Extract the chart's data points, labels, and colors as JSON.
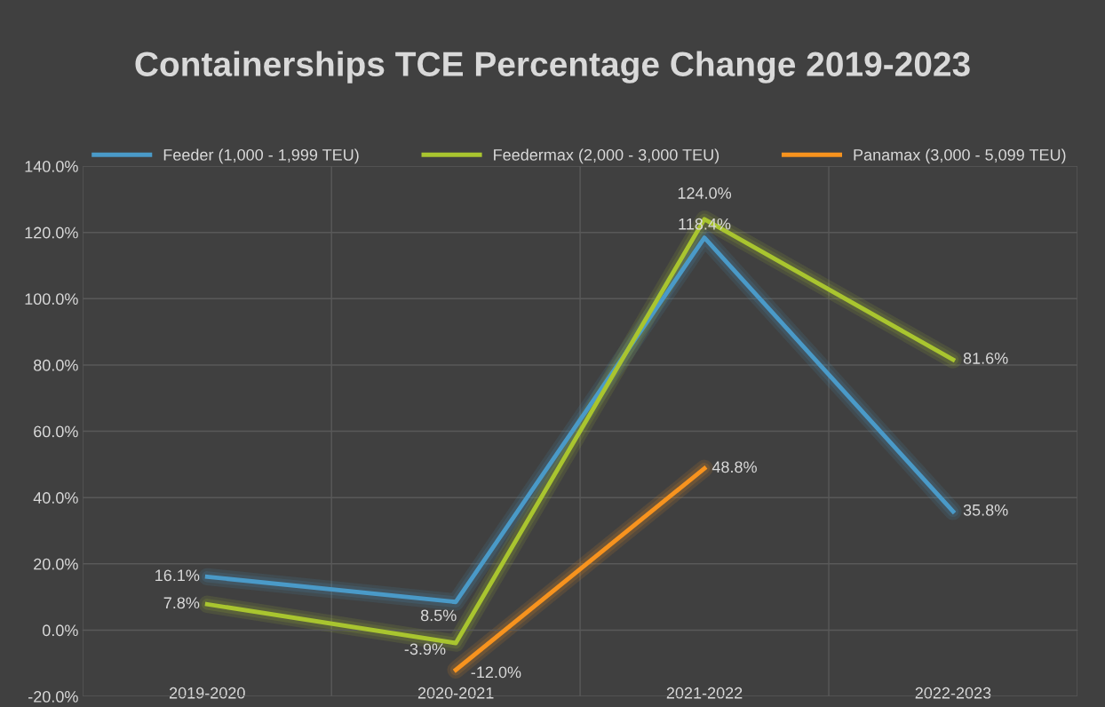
{
  "chart_data": {
    "type": "line",
    "title": "Containerships TCE Percentage Change 2019-2023",
    "categories": [
      "2019-2020",
      "2020-2021",
      "2021-2022",
      "2022-2023"
    ],
    "series": [
      {
        "name": "Feeder (1,000 - 1,999 TEU)",
        "color": "#4a9ac8",
        "values": [
          16.1,
          8.5,
          118.4,
          35.8
        ],
        "value_labels": [
          "16.1%",
          "8.5%",
          "118.4%",
          "35.8%"
        ]
      },
      {
        "name": "Feedermax (2,000 - 3,000 TEU)",
        "color": "#a9c52f",
        "values": [
          7.8,
          -3.9,
          124.0,
          81.6
        ],
        "value_labels": [
          "7.8%",
          "-3.9%",
          "124.0%",
          "81.6%"
        ]
      },
      {
        "name": "Panamax (3,000 - 5,099 TEU)",
        "color": "#f7931e",
        "values": [
          null,
          -12.0,
          48.8,
          null
        ],
        "value_labels": [
          null,
          "-12.0%",
          "48.8%",
          null
        ]
      }
    ],
    "ylim": [
      -20,
      140
    ],
    "yticks": [
      {
        "value": -20,
        "label": "-20.0%"
      },
      {
        "value": 0,
        "label": "0.0%"
      },
      {
        "value": 20,
        "label": "20.0%"
      },
      {
        "value": 40,
        "label": "40.0%"
      },
      {
        "value": 60,
        "label": "60.0%"
      },
      {
        "value": 80,
        "label": "80.0%"
      },
      {
        "value": 100,
        "label": "100.0%"
      },
      {
        "value": 120,
        "label": "120.0%"
      },
      {
        "value": 140,
        "label": "140.0%"
      }
    ],
    "grid": true,
    "legend": "top",
    "marker": "none",
    "line_style": "solid"
  }
}
